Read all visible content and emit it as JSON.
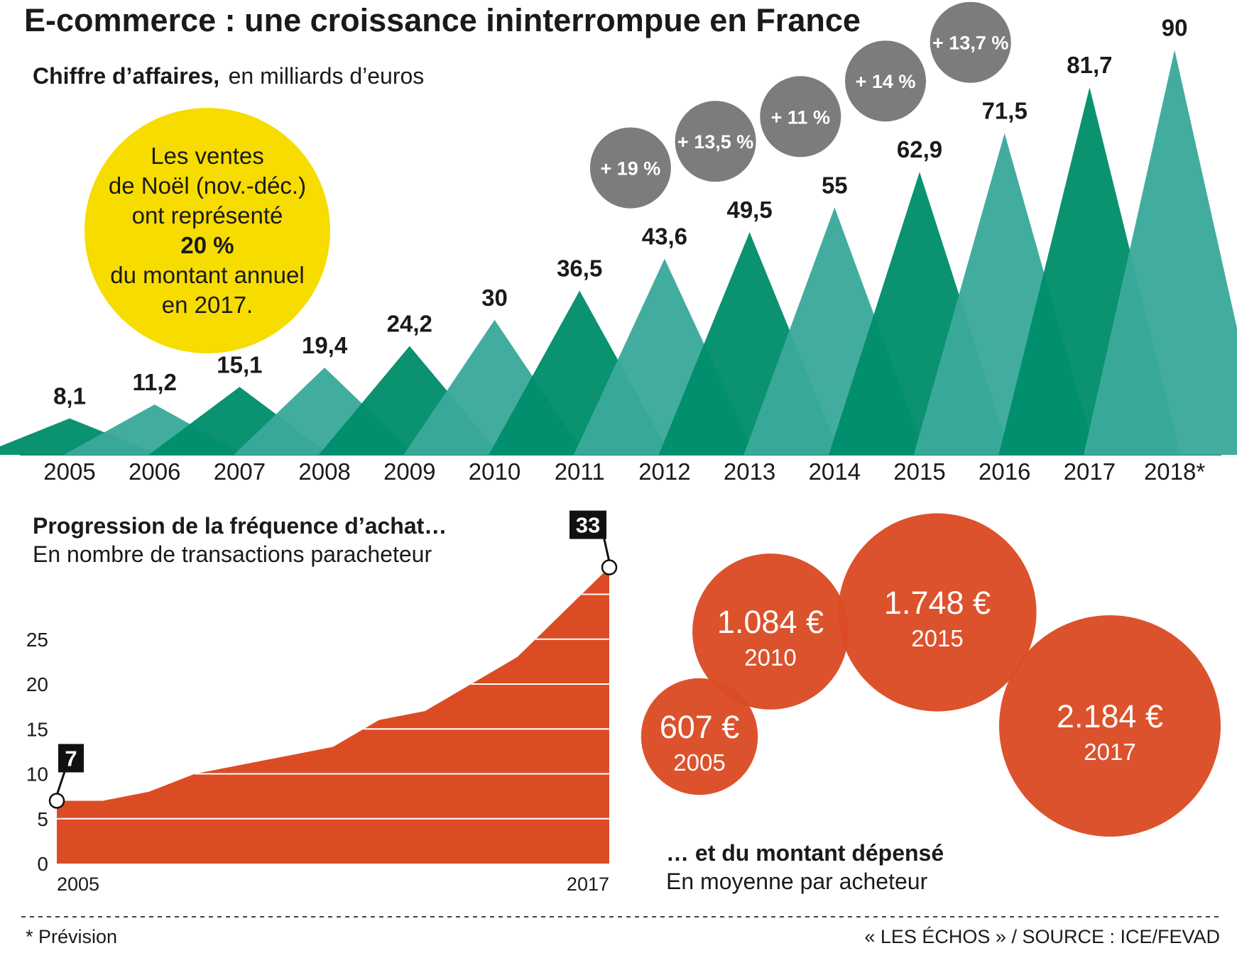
{
  "title": "E-commerce : une croissance ininterrompue en France",
  "colors": {
    "green_dark": "#008e6b",
    "green_light": "#3aaa9a",
    "grey_circle": "#7c7c7c",
    "yellow": "#f7dc00",
    "orange": "#db4c25",
    "flag": "#111111"
  },
  "chart_data": [
    {
      "type": "bar",
      "title": "Chiffre d’affaires,",
      "subtitle": "en milliards d’euros",
      "categories": [
        "2005",
        "2006",
        "2007",
        "2008",
        "2009",
        "2010",
        "2011",
        "2012",
        "2013",
        "2014",
        "2015",
        "2016",
        "2017",
        "2018*"
      ],
      "values": [
        8.1,
        11.2,
        15.1,
        19.4,
        24.2,
        30,
        36.5,
        43.6,
        49.5,
        55,
        62.9,
        71.5,
        81.7,
        90
      ],
      "value_labels": [
        "8,1",
        "11,2",
        "15,1",
        "19,4",
        "24,2",
        "30",
        "36,5",
        "43,6",
        "49,5",
        "55",
        "62,9",
        "71,5",
        "81,7",
        "90"
      ],
      "growth": [
        {
          "year": "2012",
          "label": "+ 19 %"
        },
        {
          "year": "2013",
          "label": "+ 13,5 %"
        },
        {
          "year": "2014",
          "label": "+ 11 %"
        },
        {
          "year": "2015",
          "label": "+ 14 %"
        },
        {
          "year": "2016",
          "label": "+ 13,7 %"
        }
      ],
      "note_lines": [
        "Les ventes",
        "de Noël (nov.-déc.)",
        "ont représenté",
        "20 %",
        "du montant annuel",
        "en 2017."
      ]
    },
    {
      "type": "area",
      "title": "Progression de la fréquence d’achat…",
      "subtitle": "En nombre de transactions paracheteur",
      "x": [
        2005,
        2006,
        2007,
        2008,
        2009,
        2010,
        2011,
        2012,
        2013,
        2014,
        2015,
        2016,
        2017
      ],
      "y": [
        7,
        7,
        8,
        10,
        11,
        12,
        13,
        16,
        17,
        20,
        23,
        28,
        33
      ],
      "ylim": [
        0,
        33
      ],
      "yticks": [
        "0",
        "5",
        "10",
        "15",
        "20",
        "25"
      ],
      "x_labels": [
        "2005",
        "2017"
      ],
      "start_label": "7",
      "end_label": "33"
    },
    {
      "type": "scatter",
      "title": "… et du montant dépensé",
      "subtitle": "En moyenne par acheteur",
      "points": [
        {
          "year": "2005",
          "label": "607 €",
          "value": 607
        },
        {
          "year": "2010",
          "label": "1.084 €",
          "value": 1084
        },
        {
          "year": "2015",
          "label": "1.748 €",
          "value": 1748
        },
        {
          "year": "2017",
          "label": "2.184 €",
          "value": 2184
        }
      ]
    }
  ],
  "footer": {
    "note": "* Prévision",
    "source": "« LES ÉCHOS » / SOURCE : ICE/FEVAD"
  }
}
